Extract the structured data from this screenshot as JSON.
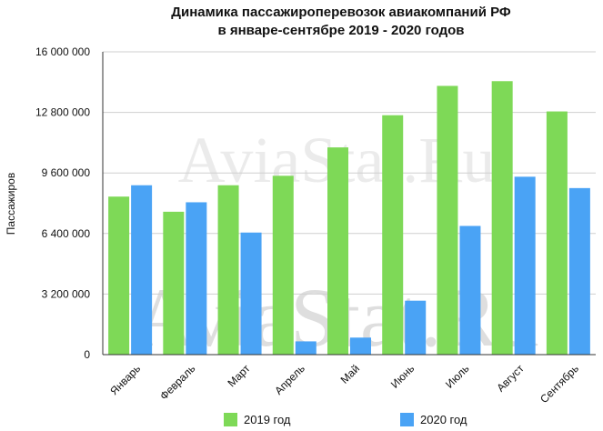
{
  "chart_data": {
    "type": "bar",
    "title": [
      "Динамика пассажироперевозок авиакомпаний РФ",
      "в январе-сентябре 2019 - 2020 годов"
    ],
    "ylabel": "Пассажиров",
    "xlabel": "",
    "categories": [
      "Январь",
      "Февраль",
      "Март",
      "Апрель",
      "Май",
      "Июнь",
      "Июль",
      "Август",
      "Сентябрь"
    ],
    "series": [
      {
        "name": "2019 год",
        "color": "#7ed957",
        "values": [
          8350000,
          7550000,
          8950000,
          9450000,
          10950000,
          12650000,
          14200000,
          14450000,
          12850000
        ]
      },
      {
        "name": "2020 год",
        "color": "#4aa3f5",
        "values": [
          8950000,
          8050000,
          6450000,
          700000,
          900000,
          2850000,
          6800000,
          9400000,
          8800000
        ]
      }
    ],
    "ylim": [
      0,
      16000000
    ],
    "yticks": [
      0,
      3200000,
      6400000,
      9600000,
      12800000,
      16000000
    ],
    "ytick_labels": [
      "0",
      "3 200 000",
      "6 400 000",
      "9 600 000",
      "12 800 000",
      "16 000 000"
    ],
    "grid": true,
    "legend": "bottom",
    "watermark": "AviaStat.Ru"
  }
}
